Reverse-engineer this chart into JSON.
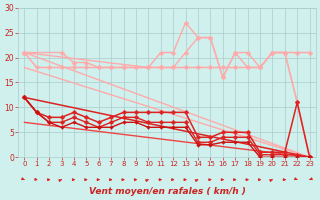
{
  "bg_color": "#cff0ec",
  "grid_color": "#aacccc",
  "xlabel": "Vent moyen/en rafales ( km/h )",
  "xlim": [
    -0.5,
    23.5
  ],
  "ylim": [
    0,
    30
  ],
  "yticks": [
    0,
    5,
    10,
    15,
    20,
    25,
    30
  ],
  "xticks": [
    0,
    1,
    2,
    3,
    4,
    5,
    6,
    7,
    8,
    9,
    10,
    11,
    12,
    13,
    14,
    15,
    16,
    17,
    18,
    19,
    20,
    21,
    22,
    23
  ],
  "series": [
    {
      "name": "linear_pale1",
      "color": "#ffaaaa",
      "lw": 1.0,
      "marker": null,
      "ms": 0,
      "x": [
        0,
        23
      ],
      "y": [
        21,
        0
      ]
    },
    {
      "name": "linear_pale2",
      "color": "#ffaaaa",
      "lw": 1.0,
      "marker": null,
      "ms": 0,
      "x": [
        0,
        23
      ],
      "y": [
        18,
        0
      ]
    },
    {
      "name": "rafales_flat",
      "color": "#ffaaaa",
      "lw": 1.1,
      "marker": "D",
      "ms": 2.5,
      "x": [
        0,
        1,
        2,
        3,
        4,
        5,
        6,
        7,
        8,
        9,
        10,
        11,
        12,
        13,
        14,
        15,
        16,
        17,
        18,
        19,
        20,
        21,
        22,
        23
      ],
      "y": [
        21,
        18,
        18,
        18,
        18,
        18,
        18,
        18,
        18,
        18,
        18,
        18,
        18,
        18,
        18,
        18,
        18,
        18,
        18,
        18,
        21,
        21,
        21,
        21
      ]
    },
    {
      "name": "rafales_wavy",
      "color": "#ffaaaa",
      "lw": 1.0,
      "marker": "D",
      "ms": 2.5,
      "x": [
        0,
        3,
        4,
        5,
        6,
        7,
        8,
        9,
        10,
        11,
        12,
        13,
        14,
        15,
        16,
        17,
        18,
        19,
        20,
        21,
        22,
        23
      ],
      "y": [
        21,
        21,
        19,
        19,
        18,
        18,
        18,
        18,
        18,
        18,
        18,
        21,
        24,
        24,
        16,
        21,
        18,
        18,
        21,
        21,
        11,
        0
      ]
    },
    {
      "name": "rafales_peak",
      "color": "#ffaaaa",
      "lw": 1.0,
      "marker": "D",
      "ms": 2.5,
      "x": [
        0,
        10,
        11,
        12,
        13,
        14,
        15,
        16,
        17,
        18,
        19,
        20,
        21,
        22,
        23
      ],
      "y": [
        21,
        18,
        21,
        21,
        27,
        24,
        24,
        16,
        21,
        21,
        18,
        21,
        21,
        11,
        0
      ]
    },
    {
      "name": "linear_dark1",
      "color": "#dd2222",
      "lw": 1.1,
      "marker": null,
      "ms": 0,
      "x": [
        0,
        23
      ],
      "y": [
        12,
        0
      ]
    },
    {
      "name": "linear_dark2",
      "color": "#ee4444",
      "lw": 1.0,
      "marker": null,
      "ms": 0,
      "x": [
        0,
        23
      ],
      "y": [
        7,
        0
      ]
    },
    {
      "name": "moyen_line1",
      "color": "#dd2222",
      "lw": 1.1,
      "marker": "D",
      "ms": 2.5,
      "x": [
        0,
        1,
        2,
        3,
        4,
        5,
        6,
        7,
        8,
        9,
        10,
        11,
        12,
        13,
        14,
        15,
        16,
        17,
        18,
        19,
        20,
        21,
        22,
        23
      ],
      "y": [
        12,
        9,
        8,
        8,
        9,
        8,
        7,
        8,
        9,
        9,
        9,
        9,
        9,
        9,
        4,
        4,
        5,
        5,
        5,
        1,
        1,
        1,
        11,
        0
      ]
    },
    {
      "name": "moyen_line2",
      "color": "#dd2222",
      "lw": 1.0,
      "marker": "D",
      "ms": 2.5,
      "x": [
        0,
        1,
        2,
        3,
        4,
        5,
        6,
        7,
        8,
        9,
        10,
        11,
        12,
        13,
        14,
        15,
        16,
        17,
        18,
        19,
        20,
        21,
        22,
        23
      ],
      "y": [
        12,
        9,
        7,
        7,
        8,
        7,
        6,
        7,
        8,
        8,
        7,
        7,
        7,
        7,
        3,
        3,
        4,
        4,
        4,
        0.5,
        0.5,
        0.5,
        0.5,
        0
      ]
    },
    {
      "name": "moyen_line3",
      "color": "#cc1111",
      "lw": 1.0,
      "marker": "D",
      "ms": 2.0,
      "x": [
        0,
        1,
        2,
        3,
        4,
        5,
        6,
        7,
        8,
        9,
        10,
        11,
        12,
        13,
        14,
        15,
        16,
        17,
        18,
        19,
        20,
        21,
        22,
        23
      ],
      "y": [
        12,
        9,
        7,
        6,
        7,
        6,
        6,
        6,
        7,
        7,
        6,
        6,
        6,
        6,
        2.5,
        2.5,
        3,
        3,
        3,
        0,
        0,
        0,
        0,
        0
      ]
    }
  ],
  "arrow_dirs": [
    135,
    115,
    90,
    45,
    90,
    90,
    90,
    90,
    90,
    90,
    45,
    90,
    90,
    90,
    45,
    90,
    90,
    90,
    90,
    90,
    45,
    90,
    135,
    225
  ],
  "arrow_color": "#dd2222",
  "tick_color": "#cc2222",
  "xlabel_color": "#cc2222"
}
